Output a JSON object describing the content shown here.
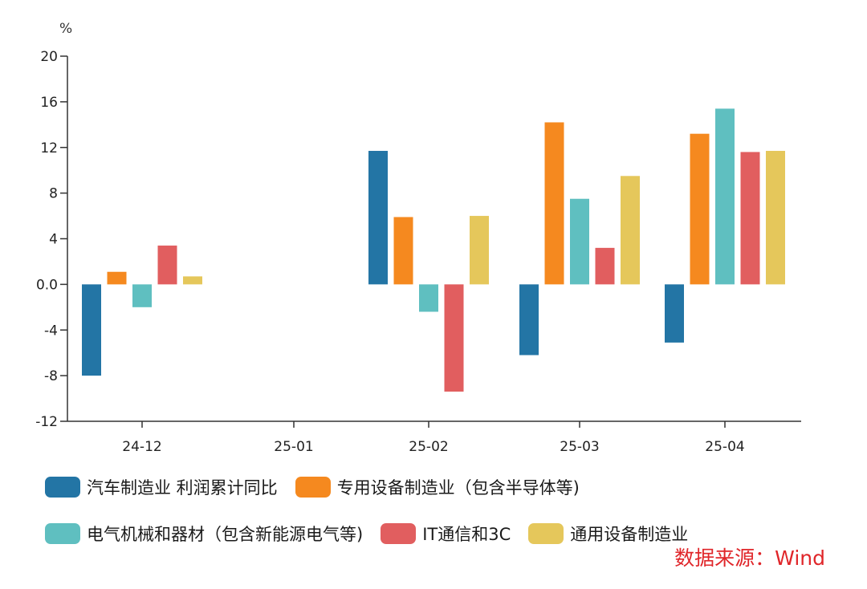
{
  "chart_data": {
    "type": "bar",
    "unit_label": "%",
    "categories": [
      "24-12",
      "25-01",
      "25-02",
      "25-03",
      "25-04"
    ],
    "ylim": [
      -12,
      20
    ],
    "yticks": [
      "20",
      "16",
      "12",
      "8",
      "4",
      "0.0",
      "-4",
      "-8",
      "-12"
    ],
    "ytick_values": [
      20,
      16,
      12,
      8,
      4,
      0,
      -4,
      -8,
      -12
    ],
    "series": [
      {
        "name": "汽车制造业 利润累计同比",
        "color": "#2375a5",
        "values": [
          -8.0,
          null,
          11.7,
          -6.2,
          -5.1
        ]
      },
      {
        "name": "专用设备制造业（包含半导体等)",
        "color": "#f5891f",
        "values": [
          1.1,
          null,
          5.9,
          14.2,
          13.2
        ]
      },
      {
        "name": "电气机械和器材（包含新能源电气等)",
        "color": "#5fbfc0",
        "values": [
          -2.0,
          null,
          -2.4,
          7.5,
          15.4
        ]
      },
      {
        "name": "IT通信和3C",
        "color": "#e15e5f",
        "values": [
          3.4,
          null,
          -9.4,
          3.2,
          11.6
        ]
      },
      {
        "name": "通用设备制造业",
        "color": "#e5c75b",
        "values": [
          0.7,
          null,
          6.0,
          9.5,
          11.7
        ]
      }
    ],
    "grid": false,
    "legend_position": "bottom"
  },
  "source": {
    "text": "数据来源：Wind",
    "color": "#e0262a"
  }
}
